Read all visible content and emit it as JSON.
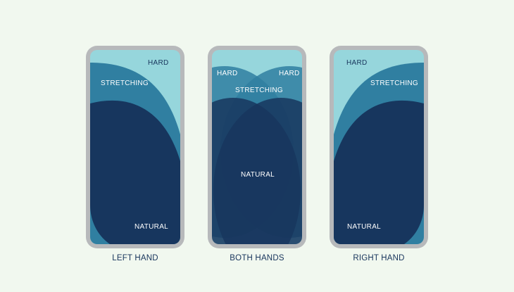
{
  "colors": {
    "background": "#f1f8ef",
    "frame": "#b7b9bb",
    "hard": "#96d6dc",
    "stretching": "#307fa1",
    "natural": "#17365e",
    "text_dark": "#17345b",
    "text_light": "#ffffff"
  },
  "phones": [
    {
      "caption": "LEFT HAND",
      "labels": {
        "hard": "HARD",
        "stretching": "STRETCHING",
        "natural": "NATURAL"
      }
    },
    {
      "caption": "BOTH HANDS",
      "labels": {
        "hard_left": "HARD",
        "hard_right": "HARD",
        "stretching": "STRETCHING",
        "natural": "NATURAL"
      }
    },
    {
      "caption": "RIGHT HAND",
      "labels": {
        "hard": "HARD",
        "stretching": "STRETCHING",
        "natural": "NATURAL"
      }
    }
  ]
}
